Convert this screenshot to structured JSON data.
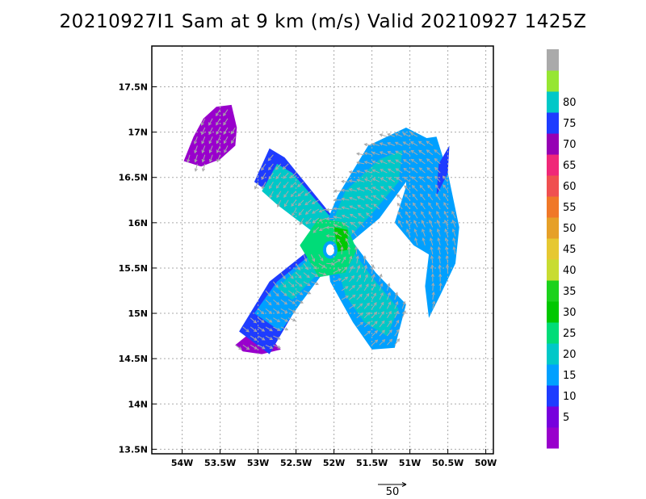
{
  "title": "20210927I1 Sam at 9 km (m/s) Valid 20210927 1425Z",
  "map": {
    "lon_range": [
      -54.4,
      -49.9
    ],
    "lat_range": [
      13.45,
      17.95
    ],
    "lon_ticks": [
      {
        "value": -54,
        "label": "54W"
      },
      {
        "value": -53.5,
        "label": "53.5W"
      },
      {
        "value": -53,
        "label": "53W"
      },
      {
        "value": -52.5,
        "label": "52.5W"
      },
      {
        "value": -52,
        "label": "52W"
      },
      {
        "value": -51.5,
        "label": "51.5W"
      },
      {
        "value": -51,
        "label": "51W"
      },
      {
        "value": -50.5,
        "label": "50.5W"
      },
      {
        "value": -50,
        "label": "50W"
      }
    ],
    "lat_ticks": [
      {
        "value": 13.5,
        "label": "13.5N"
      },
      {
        "value": 14,
        "label": "14N"
      },
      {
        "value": 14.5,
        "label": "14.5N"
      },
      {
        "value": 15,
        "label": "15N"
      },
      {
        "value": 15.5,
        "label": "15.5N"
      },
      {
        "value": 16,
        "label": "16N"
      },
      {
        "value": 16.5,
        "label": "16.5N"
      },
      {
        "value": 17,
        "label": "17N"
      },
      {
        "value": 17.5,
        "label": "17.5N"
      }
    ],
    "grid": "dotted",
    "storm_center": {
      "lon": -52.05,
      "lat": 15.7
    },
    "colors": {
      "gray_vectors": "#a9a9a9",
      "grid": "#aaaaaa",
      "band_0_5": "#9900cc",
      "band_5_10": "#7700dd",
      "band_10_15": "#1e3cff",
      "band_15_20": "#00a0ff",
      "band_20_25": "#00c8c8",
      "band_25_30": "#00dc78",
      "band_30_35": "#00c800"
    }
  },
  "colorbar": {
    "levels": [
      "5",
      "10",
      "15",
      "20",
      "25",
      "30",
      "35",
      "40",
      "45",
      "50",
      "55",
      "60",
      "65",
      "70",
      "75",
      "80"
    ],
    "colors": [
      "#9900cc",
      "#7700dd",
      "#1e3cff",
      "#00a0ff",
      "#00c8c8",
      "#00dc78",
      "#00c800",
      "#1cd21c",
      "#c8dc32",
      "#e6c832",
      "#e6a028",
      "#f07828",
      "#f05050",
      "#f02878",
      "#9600b4",
      "#1e3cff",
      "#00c8c8",
      "#96e632",
      "#aaaaaa"
    ]
  },
  "reference_vector": {
    "label": "50",
    "units": "m/s"
  }
}
